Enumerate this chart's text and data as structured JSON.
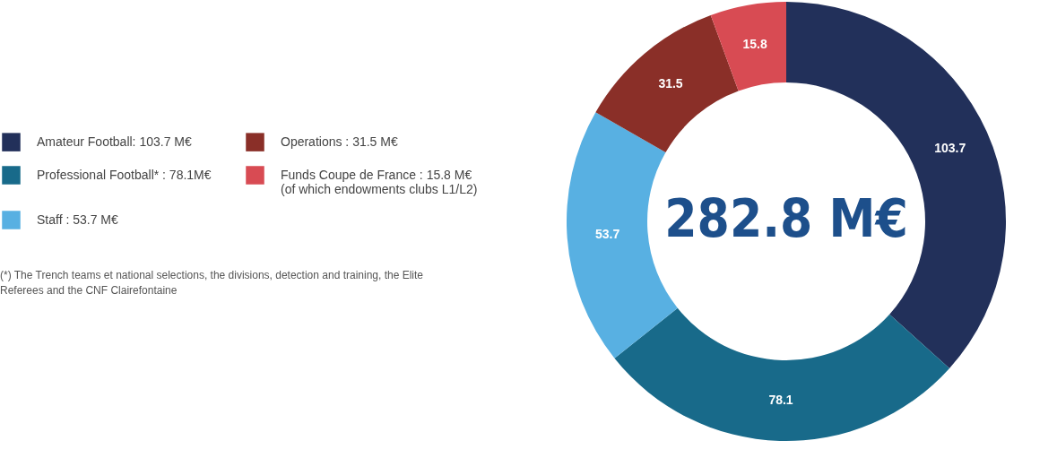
{
  "chart_data": {
    "type": "donut",
    "categories": [
      "Amateur Football: 103.7 M€",
      "Professional Football* : 78.1M€",
      "Staff : 53.7 M€",
      "Operations : 31.5 M€",
      "Funds Coupe de France : 15.8 M€\n(of which endowments clubs L1/L2)"
    ],
    "values": [
      103.7,
      78.1,
      53.7,
      31.5,
      15.8
    ],
    "colors": [
      "#22305a",
      "#186a8a",
      "#58b0e2",
      "#8a2f28",
      "#d84b53"
    ],
    "data_labels": true,
    "legend": "left",
    "annotations": [
      "282.8 M€",
      "(*) The Trench teams et national selections, the divisions, detection and training, the Elite Referees and the CNF Clairefontaine"
    ]
  }
}
